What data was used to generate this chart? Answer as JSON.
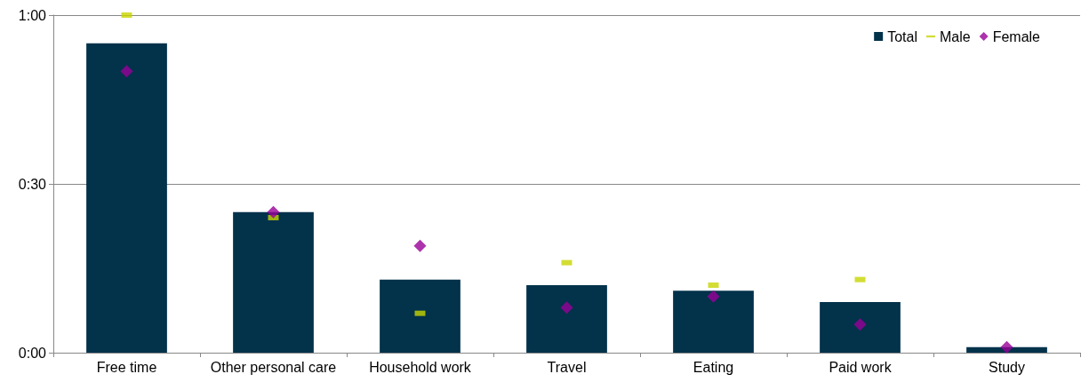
{
  "chart_data": {
    "type": "bar",
    "categories": [
      "Free time",
      "Other personal care",
      "Household work",
      "Travel",
      "Eating",
      "Paid work",
      "Study"
    ],
    "series": [
      {
        "name": "Total",
        "color": "#03324b",
        "values": [
          55,
          25,
          13,
          12,
          11,
          9,
          1
        ]
      },
      {
        "name": "Male",
        "type": "scatter",
        "marker": "square",
        "color": "#c8d400",
        "x": [
          "Free time",
          "Other personal care",
          "Household work",
          "Travel",
          "Eating",
          "Paid work",
          "Study"
        ],
        "values": [
          60,
          24,
          7,
          16,
          12,
          13,
          null
        ]
      },
      {
        "name": "Female",
        "type": "scatter",
        "marker": "diamond",
        "color": "#990099",
        "x": [
          "Free time",
          "Other personal care",
          "Household work",
          "Travel",
          "Eating",
          "Paid work",
          "Study"
        ],
        "values": [
          50,
          25,
          19,
          8,
          10,
          5,
          1
        ]
      }
    ],
    "ylim": [
      0,
      60
    ],
    "yticks": [
      {
        "value": 0,
        "label": "0:00"
      },
      {
        "value": 30,
        "label": "0:30"
      },
      {
        "value": 60,
        "label": "1:00"
      }
    ],
    "grid": "y",
    "legend": "top right"
  }
}
